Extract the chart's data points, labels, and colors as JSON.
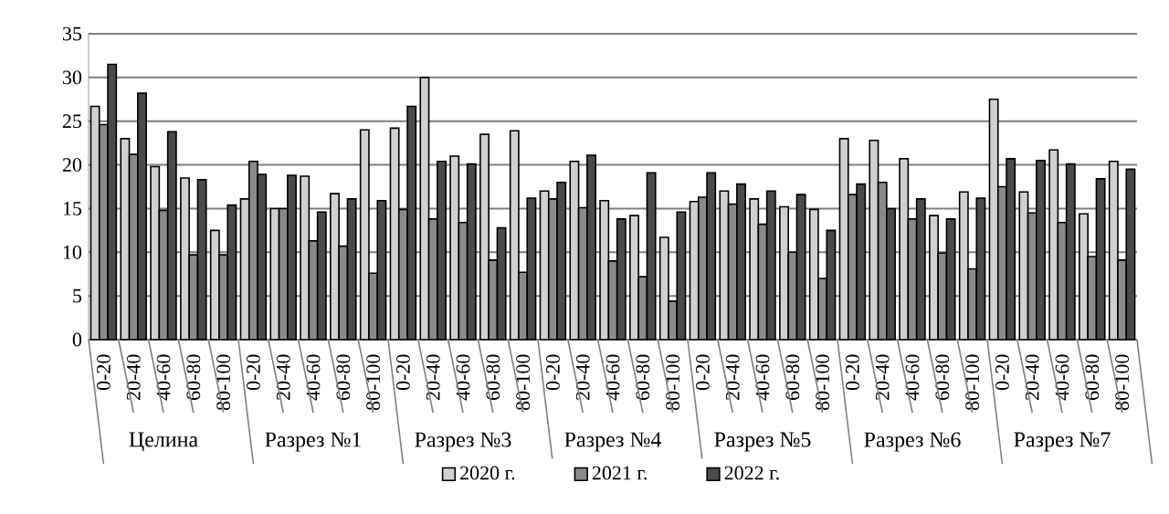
{
  "chart_data": {
    "type": "bar",
    "categories": [
      "0-20",
      "20-40",
      "40-60",
      "60-80",
      "80-100",
      "0-20",
      "20-40",
      "40-60",
      "60-80",
      "80-100",
      "0-20",
      "20-40",
      "40-60",
      "60-80",
      "80-100",
      "0-20",
      "20-40",
      "40-60",
      "60-80",
      "80-100",
      "0-20",
      "20-40",
      "40-60",
      "60-80",
      "80-100",
      "0-20",
      "20-40",
      "40-60",
      "60-80",
      "80-100",
      "0-20",
      "20-40",
      "40-60",
      "60-80",
      "80-100"
    ],
    "series": [
      {
        "name": "2020 г.",
        "color": "#d0d0d0",
        "values": [
          26.7,
          23.0,
          19.8,
          18.5,
          12.5,
          16.1,
          15.0,
          18.7,
          16.7,
          24.0,
          24.2,
          30.0,
          21.0,
          23.5,
          23.9,
          17.0,
          20.4,
          15.9,
          14.2,
          11.7,
          15.8,
          17.0,
          16.1,
          15.2,
          14.9,
          23.0,
          22.8,
          20.7,
          14.2,
          16.9,
          27.5,
          16.9,
          21.7,
          14.4,
          20.4
        ]
      },
      {
        "name": "2021 г.",
        "color": "#8a8a8a",
        "values": [
          24.6,
          21.2,
          14.8,
          9.7,
          9.7,
          20.4,
          15.0,
          11.3,
          10.7,
          7.6,
          14.9,
          13.8,
          13.4,
          9.1,
          7.7,
          16.1,
          15.1,
          9.0,
          7.2,
          4.4,
          16.3,
          15.5,
          13.2,
          10.0,
          7.0,
          16.6,
          18.0,
          13.8,
          9.9,
          8.1,
          17.5,
          14.5,
          13.4,
          9.5,
          9.1
        ]
      },
      {
        "name": "2022 г.",
        "color": "#4a4a4a",
        "values": [
          31.5,
          28.2,
          23.8,
          18.3,
          15.4,
          18.9,
          18.8,
          14.6,
          16.1,
          15.9,
          26.7,
          20.4,
          20.1,
          12.8,
          16.2,
          18.0,
          21.1,
          13.8,
          19.1,
          14.6,
          19.1,
          17.8,
          17.0,
          16.6,
          12.5,
          17.8,
          15.0,
          16.1,
          13.8,
          16.2,
          20.7,
          20.5,
          20.1,
          18.4,
          19.5
        ]
      }
    ],
    "ylim": [
      0,
      35
    ],
    "yticks": [
      0,
      5,
      10,
      15,
      20,
      25,
      30,
      35
    ],
    "grid": "y",
    "legend": "bottom",
    "annotations": [
      "Целина",
      "Разрез №1",
      "Разрез №3",
      "Разрез №4",
      "Разрез №5",
      "Разрез №6",
      "Разрез №7"
    ]
  }
}
